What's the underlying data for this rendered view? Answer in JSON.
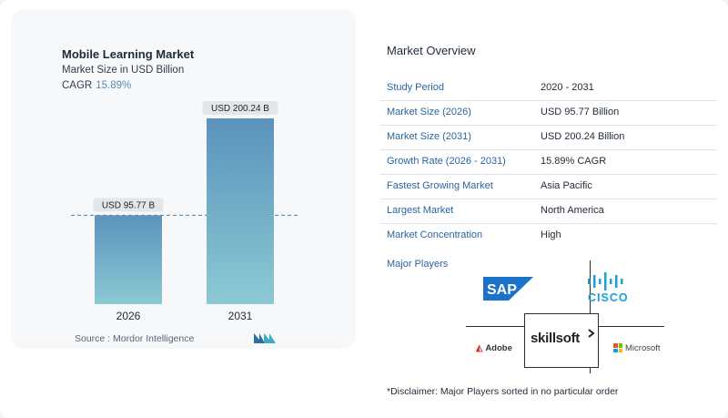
{
  "chart_data": {
    "type": "bar",
    "title": "Mobile Learning Market",
    "subtitle": "Market Size in USD Billion",
    "cagr_label": "CAGR",
    "cagr_value": "15.89%",
    "categories": [
      "2026",
      "2031"
    ],
    "values": [
      95.77,
      200.24
    ],
    "data_labels": [
      "USD 95.77 B",
      "USD 200.24 B"
    ],
    "reference_line": "dashed at first bar value",
    "colors": {
      "bar_top": "#5b93bd",
      "bar_bottom": "#8cc9d3",
      "cagr": "#5a8fb4"
    },
    "source": "Source :  Mordor Intelligence"
  },
  "overview": {
    "title": "Market Overview",
    "rows": [
      {
        "label": "Study Period",
        "value": "2020 - 2031"
      },
      {
        "label": "Market Size (2026)",
        "value": "USD 95.77 Billion"
      },
      {
        "label": "Market Size (2031)",
        "value": "USD 200.24 Billion"
      },
      {
        "label": "Growth Rate (2026 - 2031)",
        "value": "15.89% CAGR"
      },
      {
        "label": "Fastest Growing Market",
        "value": "Asia Pacific"
      },
      {
        "label": "Largest Market",
        "value": "North America"
      },
      {
        "label": "Market Concentration",
        "value": "High"
      }
    ],
    "players_title": "Major Players",
    "players": {
      "sap": "SAP",
      "cisco": "CISCO",
      "skillsoft": "skillsoft",
      "adobe": "Adobe",
      "microsoft": "Microsoft"
    },
    "disclaimer": "*Disclaimer: Major Players sorted in no particular order"
  },
  "brand_colors": {
    "label_blue": "#2a64a0",
    "sap_blue": "#1a73c8",
    "cisco_blue": "#1ba0d7",
    "adobe_red": "#e0282b"
  }
}
